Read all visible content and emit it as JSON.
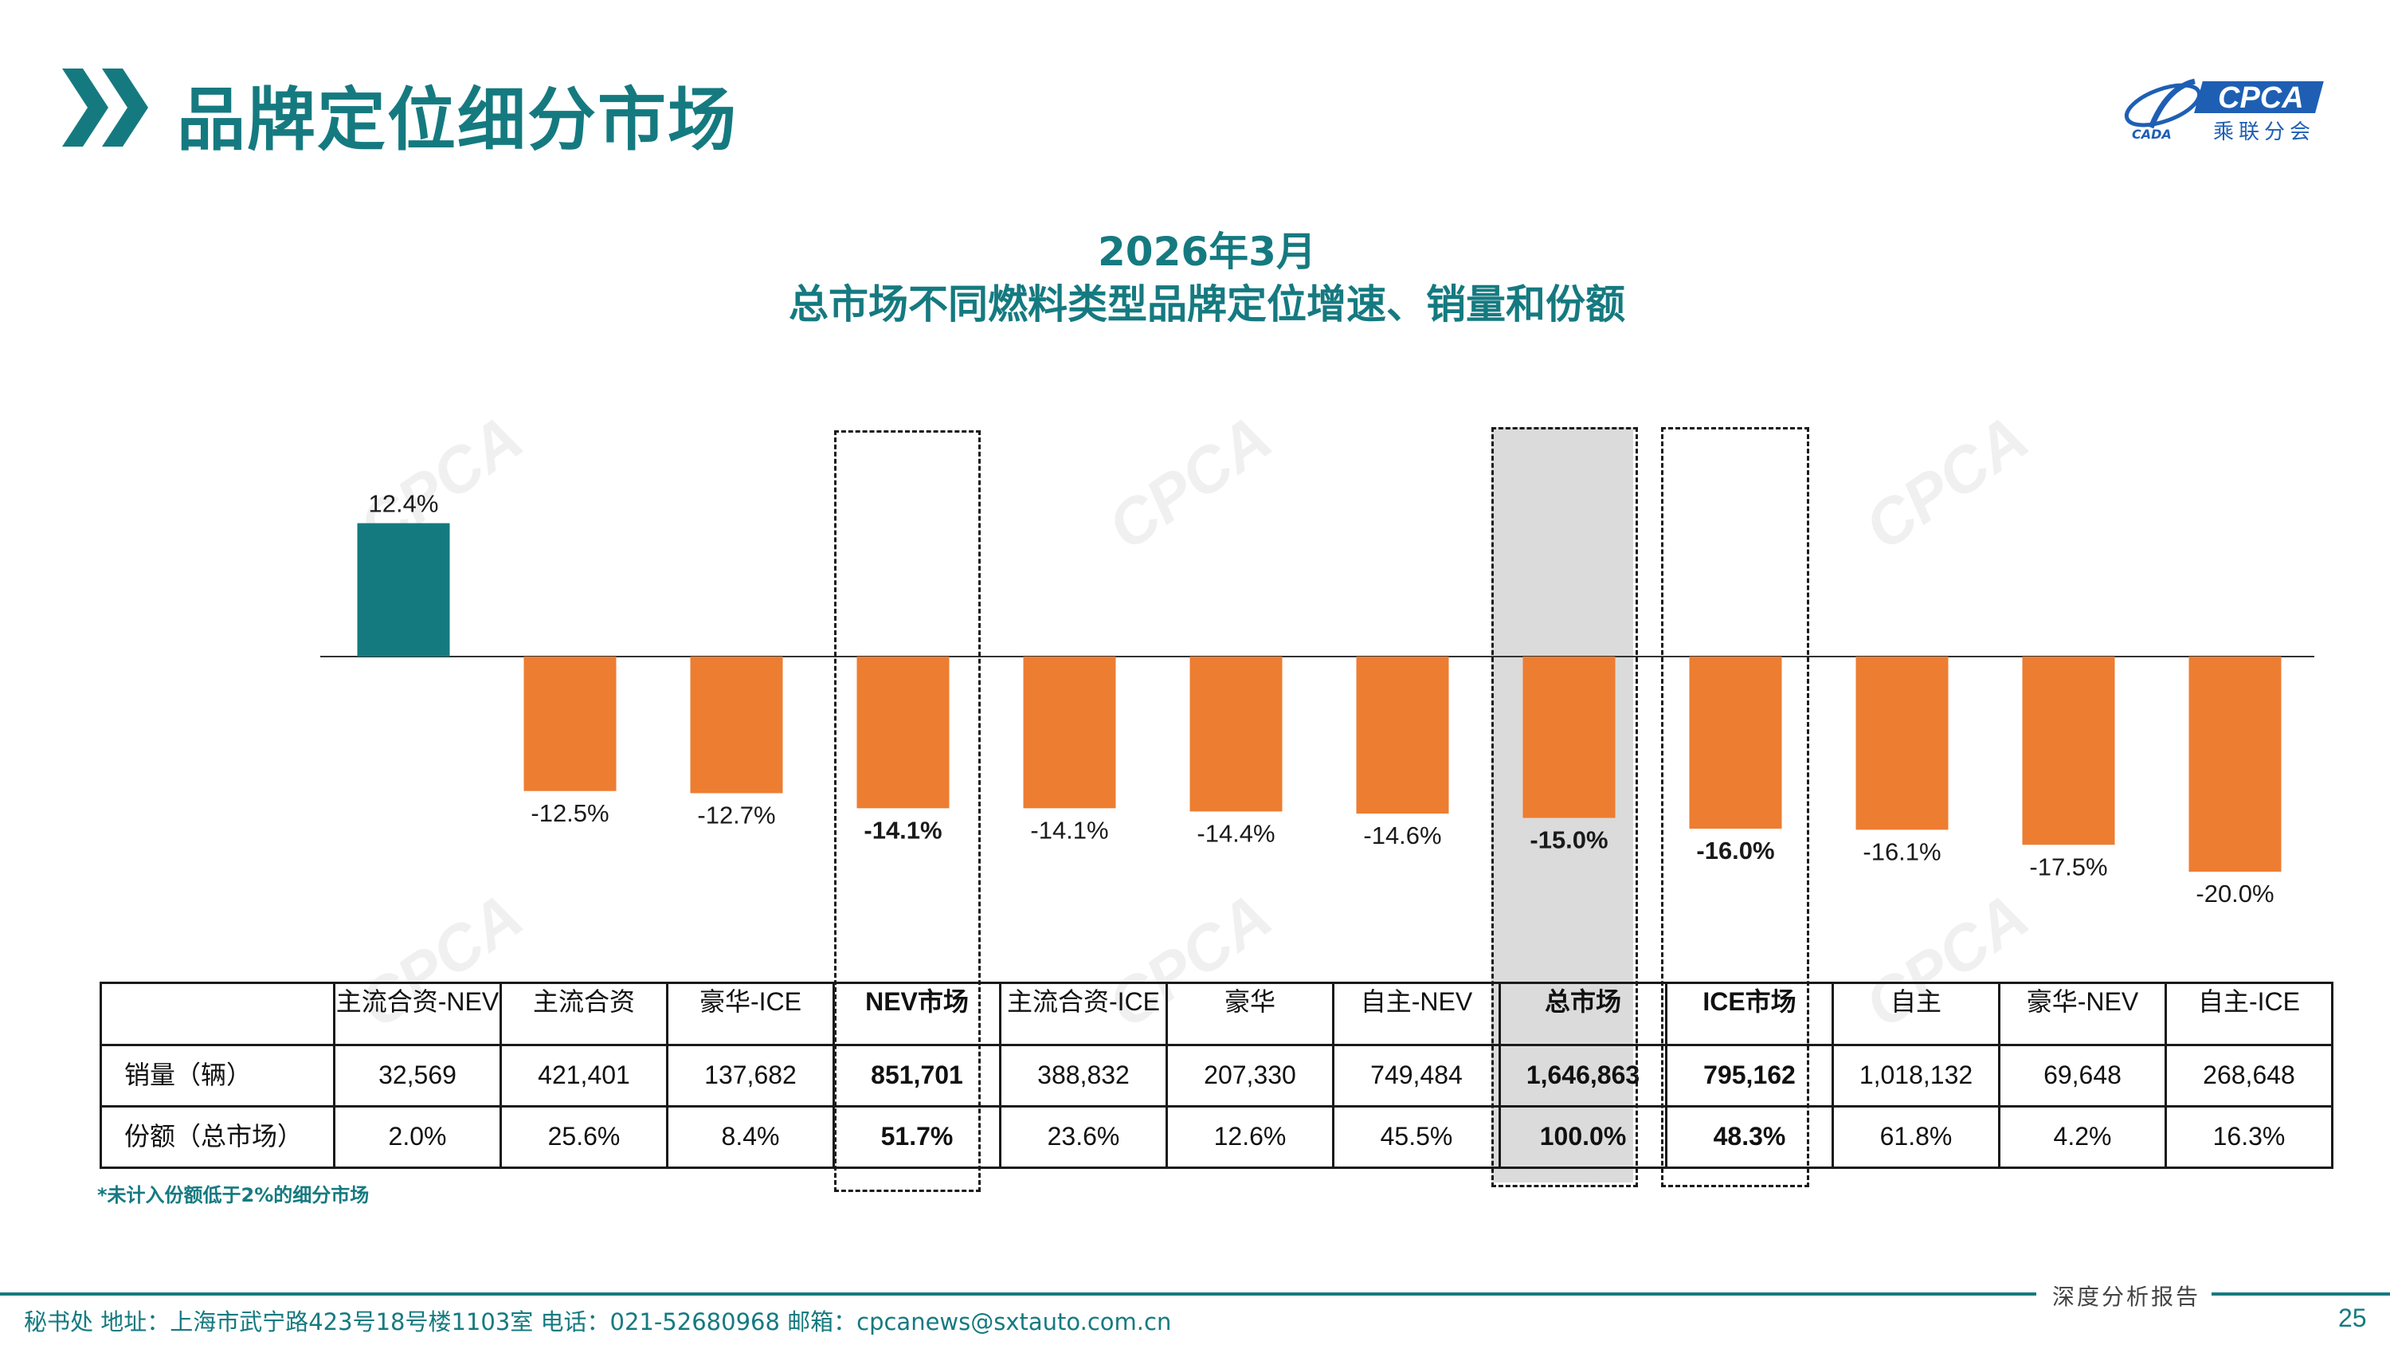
{
  "header": {
    "title": "品牌定位细分市场",
    "logo_text": "CPCA",
    "logo_subtext": "乘联分会",
    "logo_mark_text": "CADA"
  },
  "chart_data": {
    "type": "bar",
    "title": "2026年3月",
    "subtitle": "总市场不同燃料类型品牌定位增速、销量和份额",
    "categories": [
      "主流合资-NEV",
      "主流合资",
      "豪华-ICE",
      "NEV市场",
      "主流合资-ICE",
      "豪华",
      "自主-NEV",
      "总市场",
      "ICE市场",
      "自主",
      "豪华-NEV",
      "自主-ICE"
    ],
    "values": [
      12.4,
      -12.5,
      -12.7,
      -14.1,
      -14.1,
      -14.4,
      -14.6,
      -15.0,
      -16.0,
      -16.1,
      -17.5,
      -20.0
    ],
    "value_labels": [
      "12.4%",
      "-12.5%",
      "-12.7%",
      "-14.1%",
      "-14.1%",
      "-14.4%",
      "-14.6%",
      "-15.0%",
      "-16.0%",
      "-16.1%",
      "-17.5%",
      "-20.0%"
    ],
    "unit": "%",
    "emphasized": [
      "NEV市场",
      "总市场",
      "ICE市场"
    ],
    "highlighted": "总市场",
    "colors": {
      "positive": "#157a80",
      "negative": "#ed7d31",
      "title": "#157a80"
    },
    "ylim": [
      -20,
      12.4
    ],
    "grid": false,
    "legend": "none"
  },
  "table": {
    "headers": [
      "主流合资-NEV",
      "主流合资",
      "豪华-ICE",
      "NEV市场",
      "主流合资-ICE",
      "豪华",
      "自主-NEV",
      "总市场",
      "ICE市场",
      "自主",
      "豪华-NEV",
      "自主-ICE"
    ],
    "rows": [
      {
        "label": "销量（辆）",
        "values": [
          "32,569",
          "421,401",
          "137,682",
          "851,701",
          "388,832",
          "207,330",
          "749,484",
          "1,646,863",
          "795,162",
          "1,018,132",
          "69,648",
          "268,648"
        ]
      },
      {
        "label": "份额（总市场）",
        "values": [
          "2.0%",
          "25.6%",
          "8.4%",
          "51.7%",
          "23.6%",
          "12.6%",
          "45.5%",
          "100.0%",
          "48.3%",
          "61.8%",
          "4.2%",
          "16.3%"
        ]
      }
    ]
  },
  "note": "*未计入份额低于2%的细分市场",
  "footer": {
    "address": "秘书处   地址：上海市武宁路423号18号楼1103室  电话：021-52680968   邮箱：cpcanews@sxtauto.com.cn",
    "report_label": "深度分析报告",
    "page_number": "25"
  }
}
